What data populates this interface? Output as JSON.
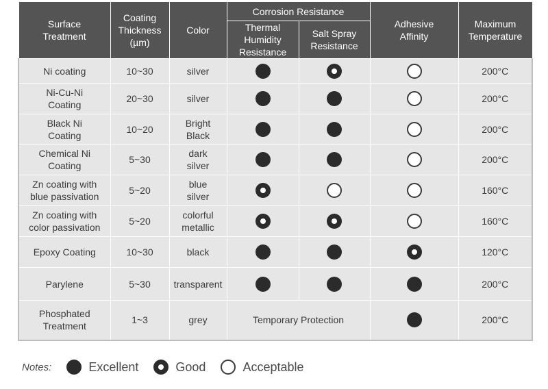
{
  "headers": {
    "surface_treatment": "Surface\nTreatment",
    "coating_thickness": "Coating\nThickness\n(µm)",
    "color": "Color",
    "corrosion_resistance": "Corrosion Resistance",
    "thermal_humidity": "Thermal\nHumidity\nResistance",
    "salt_spray": "Salt Spray\nResistance",
    "adhesive_affinity": "Adhesive\nAffinity",
    "max_temperature": "Maximum\nTemperature"
  },
  "rows": [
    {
      "treatment": "Ni coating",
      "thickness": "10~30",
      "color": "silver",
      "thermal": "excellent",
      "salt": "good",
      "adhesive": "acceptable",
      "temp": "200°C"
    },
    {
      "treatment": "Ni-Cu-Ni\nCoating",
      "thickness": "20~30",
      "color": "silver",
      "thermal": "excellent",
      "salt": "excellent",
      "adhesive": "acceptable",
      "temp": "200°C"
    },
    {
      "treatment": "Black Ni\nCoating",
      "thickness": "10~20",
      "color": "Bright\nBlack",
      "thermal": "excellent",
      "salt": "excellent",
      "adhesive": "acceptable",
      "temp": "200°C"
    },
    {
      "treatment": "Chemical Ni\nCoating",
      "thickness": "5~30",
      "color": "dark\nsilver",
      "thermal": "excellent",
      "salt": "excellent",
      "adhesive": "acceptable",
      "temp": "200°C"
    },
    {
      "treatment": "Zn coating with\nblue passivation",
      "thickness": "5~20",
      "color": "blue\nsilver",
      "thermal": "good",
      "salt": "acceptable",
      "adhesive": "acceptable",
      "temp": "160°C"
    },
    {
      "treatment": "Zn coating with\ncolor passivation",
      "thickness": "5~20",
      "color": "colorful\nmetallic",
      "thermal": "good",
      "salt": "good",
      "adhesive": "acceptable",
      "temp": "160°C"
    },
    {
      "treatment": "Epoxy Coating",
      "thickness": "10~30",
      "color": "black",
      "thermal": "excellent",
      "salt": "excellent",
      "adhesive": "good",
      "temp": "120°C"
    },
    {
      "treatment": "Parylene",
      "thickness": "5~30",
      "color": "transparent",
      "thermal": "excellent",
      "salt": "excellent",
      "adhesive": "excellent",
      "temp": "200°C"
    },
    {
      "treatment": "Phosphated\nTreatment",
      "thickness": "1~3",
      "color": "grey",
      "corrosion_text": "Temporary Protection",
      "adhesive": "excellent",
      "temp": "200°C"
    }
  ],
  "legend": {
    "notes": "Notes:",
    "excellent": "Excellent",
    "good": "Good",
    "acceptable": "Acceptable"
  }
}
